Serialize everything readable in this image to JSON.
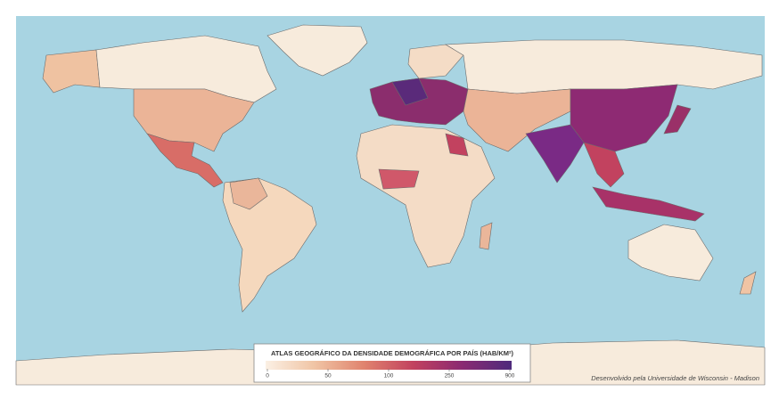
{
  "map": {
    "legend": {
      "title": "ATLAS GEOGRÁFICO DA DENSIDADE DEMOGRÁFICA POR PAÍS (HAB/KM²)",
      "ticks": [
        0,
        50,
        100,
        250,
        900
      ],
      "colors": [
        "#fbf0e4",
        "#f0c4a4",
        "#e0836e",
        "#c2425f",
        "#8a2a72",
        "#4e2a7c"
      ]
    },
    "credit": "Desenvolvido pela Universidade de Wisconsin - Madison"
  }
}
